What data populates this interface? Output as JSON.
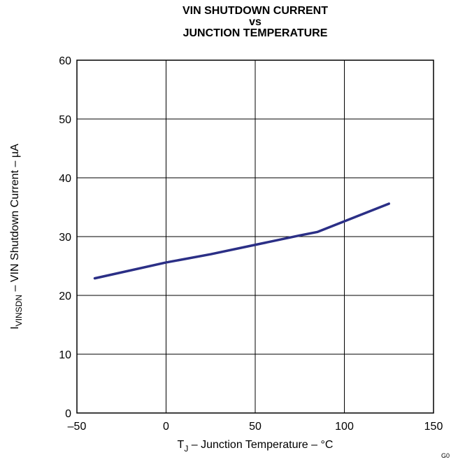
{
  "chart_data": {
    "type": "line",
    "title_lines": [
      "VIN SHUTDOWN CURRENT",
      "vs",
      "JUNCTION TEMPERATURE"
    ],
    "xlabel": {
      "main": "T",
      "sub": "J",
      "rest": " – Junction Temperature – °C"
    },
    "ylabel": {
      "main": "I",
      "sub": "VINSDN",
      "rest": " – VIN Shutdown Current – µA"
    },
    "xlim": [
      -50,
      150
    ],
    "ylim": [
      0,
      60
    ],
    "x_ticks": [
      -50,
      0,
      50,
      100,
      150
    ],
    "x_tick_labels": [
      "–50",
      "0",
      "50",
      "100",
      "150"
    ],
    "y_ticks": [
      0,
      10,
      20,
      30,
      40,
      50,
      60
    ],
    "y_tick_labels": [
      "0",
      "10",
      "20",
      "30",
      "40",
      "50",
      "60"
    ],
    "grid": true,
    "series": [
      {
        "color": "#2b2f86",
        "x": [
          -40,
          0,
          25,
          50,
          75,
          85,
          125
        ],
        "y": [
          22.9,
          25.6,
          27.0,
          28.6,
          30.2,
          30.8,
          35.6
        ]
      }
    ]
  },
  "figure_code": "G0"
}
